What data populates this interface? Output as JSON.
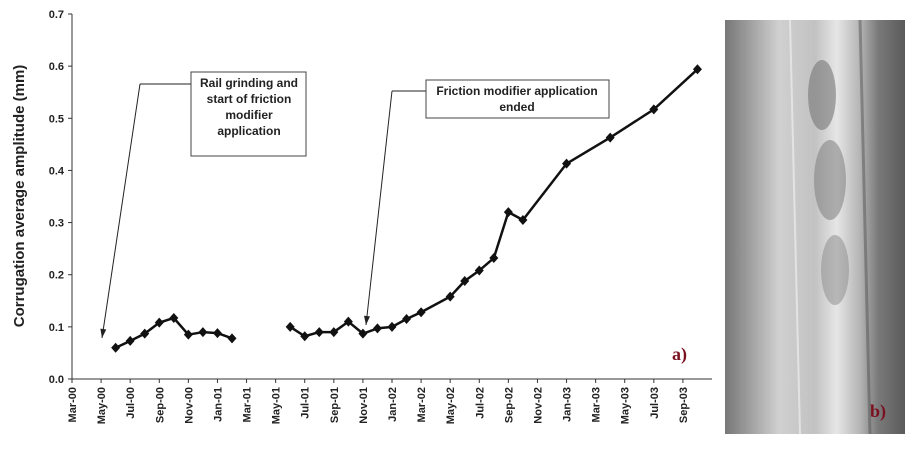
{
  "chart_data": {
    "type": "line",
    "ylabel": "Corrugation average amplitude (mm)",
    "x": [
      "2000-06",
      "2000-07",
      "2000-08",
      "2000-09",
      "2000-10",
      "2000-11",
      "2000-12",
      "2001-01",
      "2001-02",
      "2001-04",
      "2001-06",
      "2001-07",
      "2001-08",
      "2001-09",
      "2001-10",
      "2001-11",
      "2001-12",
      "2002-01",
      "2002-02",
      "2002-03",
      "2002-05",
      "2002-06",
      "2002-07",
      "2002-08",
      "2002-09",
      "2002-10",
      "2003-01",
      "2003-04",
      "2003-07",
      "2003-10"
    ],
    "series": [
      {
        "color": "#111111",
        "values": [
          0.06,
          0.073,
          0.087,
          0.108,
          0.117,
          0.085,
          0.09,
          0.088,
          0.078,
          null,
          0.1,
          0.082,
          0.09,
          0.09,
          0.11,
          0.087,
          0.097,
          0.1,
          0.115,
          0.128,
          0.158,
          0.188,
          0.208,
          0.232,
          0.32,
          0.305,
          0.413,
          0.463,
          0.517,
          0.594
        ]
      }
    ],
    "xlim": [
      "2000-03",
      "2003-11"
    ],
    "xticks": [
      {
        "value": "2000-03",
        "label": "Mar-00"
      },
      {
        "value": "2000-05",
        "label": "May-00"
      },
      {
        "value": "2000-07",
        "label": "Jul-00"
      },
      {
        "value": "2000-09",
        "label": "Sep-00"
      },
      {
        "value": "2000-11",
        "label": "Nov-00"
      },
      {
        "value": "2001-01",
        "label": "Jan-01"
      },
      {
        "value": "2001-03",
        "label": "Mar-01"
      },
      {
        "value": "2001-05",
        "label": "May-01"
      },
      {
        "value": "2001-07",
        "label": "Jul-01"
      },
      {
        "value": "2001-09",
        "label": "Sep-01"
      },
      {
        "value": "2001-11",
        "label": "Nov-01"
      },
      {
        "value": "2002-01",
        "label": "Jan-02"
      },
      {
        "value": "2002-03",
        "label": "Mar-02"
      },
      {
        "value": "2002-05",
        "label": "May-02"
      },
      {
        "value": "2002-07",
        "label": "Jul-02"
      },
      {
        "value": "2002-09",
        "label": "Sep-02"
      },
      {
        "value": "2002-11",
        "label": "Nov-02"
      },
      {
        "value": "2003-01",
        "label": "Jan-03"
      },
      {
        "value": "2003-03",
        "label": "Mar-03"
      },
      {
        "value": "2003-05",
        "label": "May-03"
      },
      {
        "value": "2003-07",
        "label": "Jul-03"
      },
      {
        "value": "2003-09",
        "label": "Sep-03"
      }
    ],
    "ylim": [
      0,
      0.7
    ],
    "yticks": [
      {
        "value": 0,
        "label": "0.0"
      },
      0.1,
      0.2,
      0.3,
      0.4,
      0.5,
      0.6,
      0.7
    ],
    "annotations": [
      {
        "lines": [
          "Rail grinding and",
          "start of friction",
          "modifier",
          "application"
        ]
      },
      {
        "lines": [
          "Friction modifier application",
          "ended"
        ]
      }
    ],
    "panel_labels": [
      "a)",
      "b)"
    ]
  }
}
